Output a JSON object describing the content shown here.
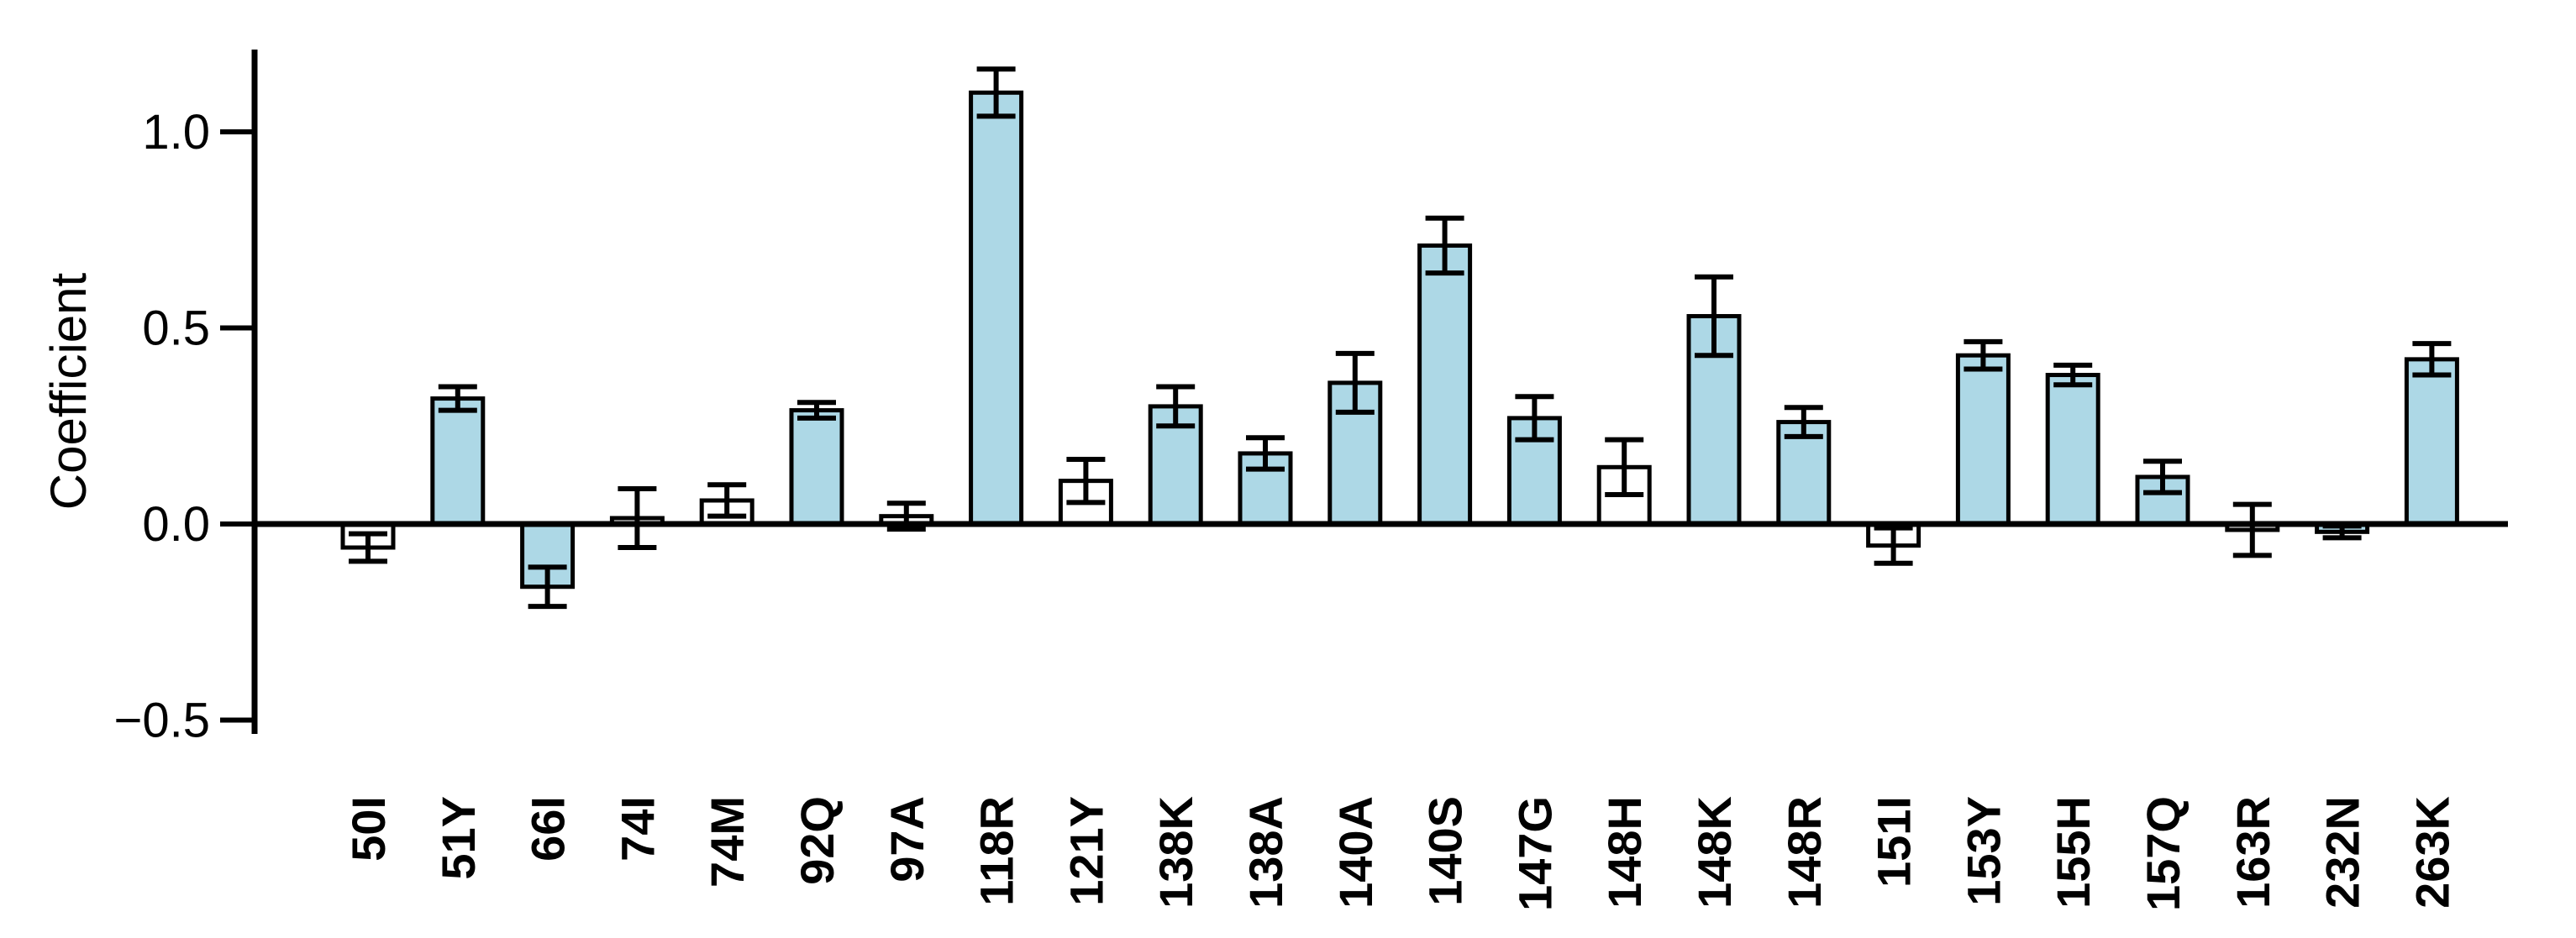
{
  "chart_data": {
    "type": "bar",
    "title": "",
    "xlabel": "",
    "ylabel": "Coefficient",
    "categories": [
      "50I",
      "51Y",
      "66I",
      "74I",
      "74M",
      "92Q",
      "97A",
      "118R",
      "121Y",
      "138K",
      "138A",
      "140A",
      "140S",
      "147G",
      "148H",
      "148K",
      "148R",
      "151I",
      "153Y",
      "155H",
      "157Q",
      "163R",
      "232N",
      "263K"
    ],
    "values": [
      -0.06,
      0.32,
      -0.16,
      0.015,
      0.06,
      0.29,
      0.02,
      1.1,
      0.11,
      0.3,
      0.18,
      0.36,
      0.71,
      0.27,
      0.145,
      0.53,
      0.26,
      -0.055,
      0.43,
      0.38,
      0.12,
      -0.015,
      -0.02,
      0.42
    ],
    "errors": [
      0.035,
      0.03,
      0.05,
      0.075,
      0.04,
      0.02,
      0.033,
      0.06,
      0.055,
      0.05,
      0.04,
      0.075,
      0.07,
      0.055,
      0.07,
      0.1,
      0.037,
      0.045,
      0.035,
      0.025,
      0.04,
      0.065,
      0.015,
      0.04
    ],
    "filled": [
      false,
      true,
      true,
      false,
      false,
      true,
      false,
      true,
      false,
      true,
      true,
      true,
      true,
      true,
      false,
      true,
      true,
      false,
      true,
      true,
      true,
      false,
      true,
      true
    ],
    "y_ticks": [
      {
        "value": 1.0,
        "label": "1.0"
      },
      {
        "value": 0.5,
        "label": "0.5"
      },
      {
        "value": 0.0,
        "label": "0.0"
      },
      {
        "value": -0.5,
        "label": "−0.5"
      }
    ],
    "ylim": [
      -0.54,
      1.21
    ],
    "grid": false,
    "legend": "none",
    "error_bar_style": "capped",
    "colors": {
      "bar_fill": "#ADD8E6",
      "bar_unfilled": "#FFFFFF",
      "bar_edge": "#000000",
      "axis": "#000000",
      "text": "#000000",
      "background": "#FFFFFF"
    }
  }
}
